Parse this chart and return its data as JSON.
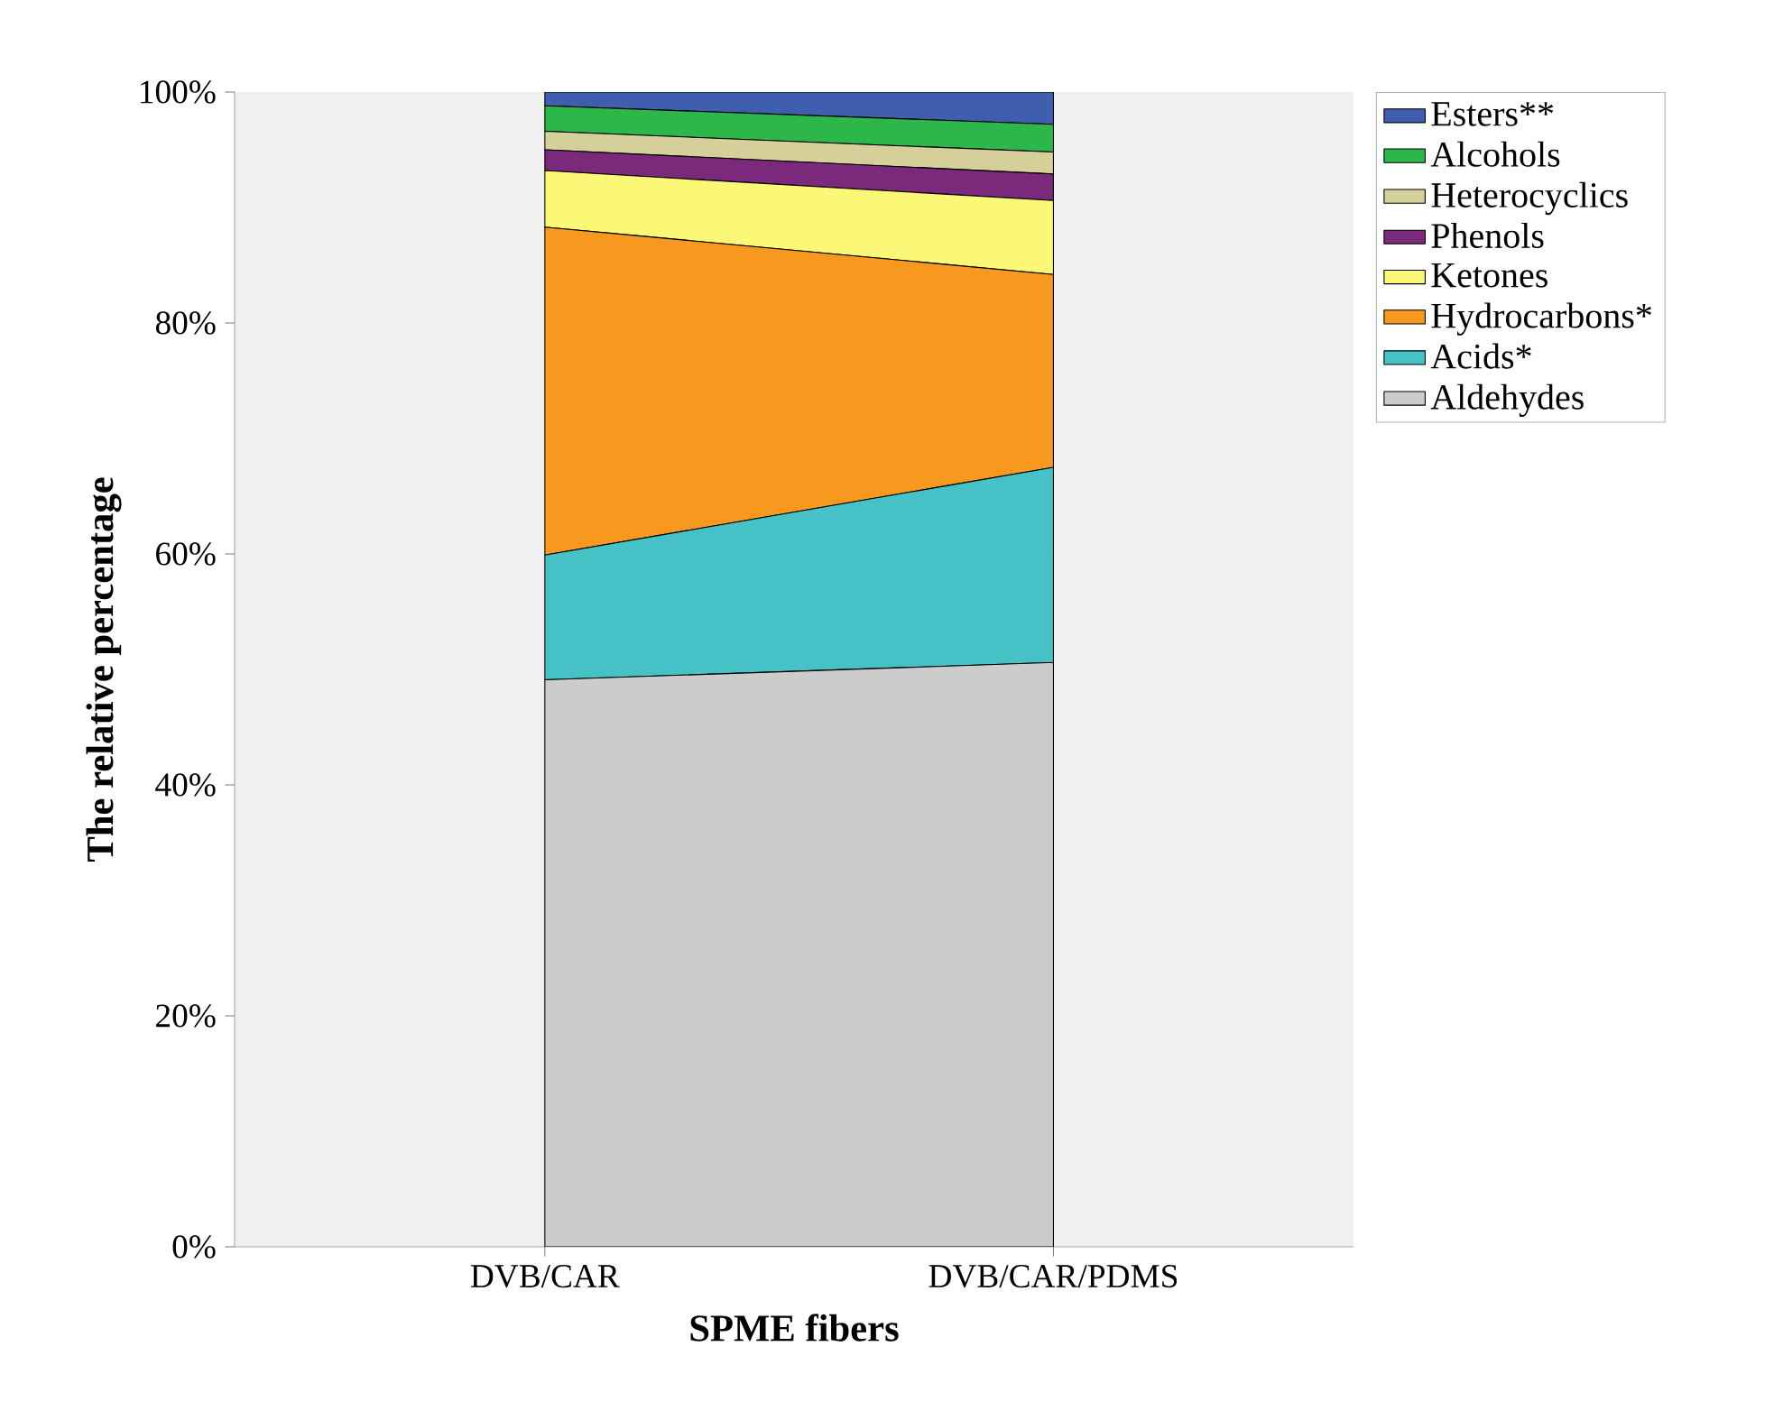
{
  "chart_data": {
    "type": "area",
    "stacked": true,
    "xlabel": "SPME fibers",
    "ylabel": "The relative percentage",
    "categories": [
      "DVB/CAR",
      "DVB/CAR/PDMS"
    ],
    "ylim": [
      0,
      100
    ],
    "yticks": [
      {
        "value": 0,
        "label": "0%"
      },
      {
        "value": 20,
        "label": "20%"
      },
      {
        "value": 40,
        "label": "40%"
      },
      {
        "value": 60,
        "label": "60%"
      },
      {
        "value": 80,
        "label": "80%"
      },
      {
        "value": 100,
        "label": "100%"
      }
    ],
    "legend": "top right",
    "series": [
      {
        "name": "Aldehydes",
        "color": "#cccccc",
        "values": [
          49.1,
          50.6
        ]
      },
      {
        "name": "Acids*",
        "color": "#46c1c6",
        "values": [
          10.8,
          16.9
        ]
      },
      {
        "name": "Hydrocarbons*",
        "color": "#f7981f",
        "values": [
          28.4,
          16.7
        ]
      },
      {
        "name": "Ketones",
        "color": "#fbf777",
        "values": [
          4.9,
          6.4
        ]
      },
      {
        "name": "Phenols",
        "color": "#7b2a7b",
        "values": [
          1.8,
          2.3
        ]
      },
      {
        "name": "Heterocyclics",
        "color": "#d5cf9a",
        "values": [
          1.6,
          1.9
        ]
      },
      {
        "name": "Alcohols",
        "color": "#2db74a",
        "values": [
          2.2,
          2.4
        ]
      },
      {
        "name": "Esters**",
        "color": "#3f5fae",
        "values": [
          1.2,
          2.8
        ]
      }
    ]
  }
}
